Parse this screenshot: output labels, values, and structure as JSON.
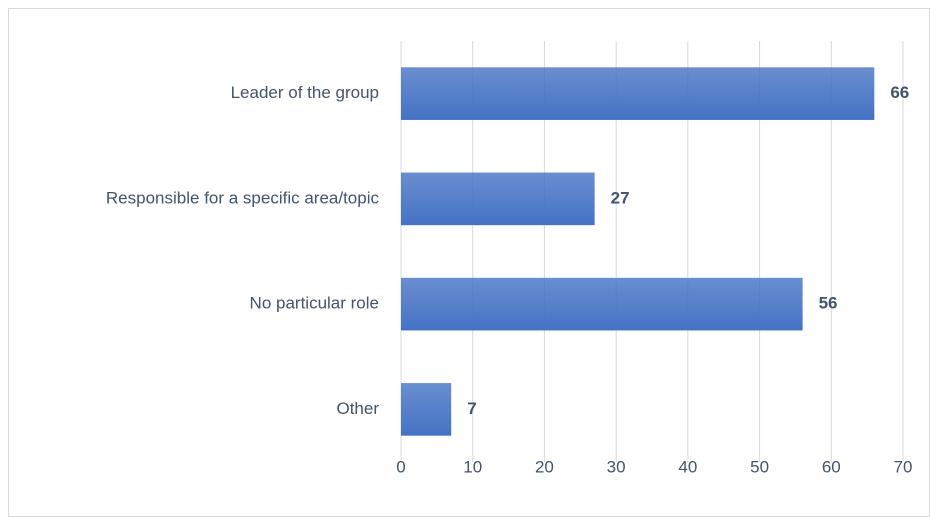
{
  "chart_data": {
    "type": "bar",
    "categories": [
      "Leader of the group",
      "Responsible for a specific area/topic",
      "No particular role",
      "Other"
    ],
    "values": [
      66,
      27,
      56,
      7
    ],
    "color": "#4472c4",
    "xlim": [
      0,
      70
    ],
    "xticks": [
      0,
      10,
      20,
      30,
      40,
      50,
      60,
      70
    ],
    "grid": true
  }
}
